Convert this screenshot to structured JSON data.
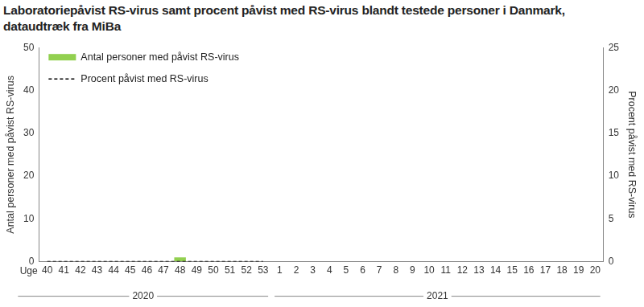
{
  "chart_data": {
    "type": "bar",
    "title": "Laboratoriepåvist RS-virus samt procent påvist med RS-virus blandt testede personer i Danmark, dataudtræk fra MiBa",
    "xlabel": "Uge",
    "ylabel": "Antal personer med påvist RS-virus",
    "y2label": "Procent påvist med RS-virus",
    "categories": [
      "40",
      "41",
      "42",
      "43",
      "44",
      "45",
      "46",
      "47",
      "48",
      "49",
      "50",
      "51",
      "52",
      "53",
      "1",
      "2",
      "3",
      "4",
      "5",
      "6",
      "7",
      "8",
      "9",
      "10",
      "11",
      "12",
      "13",
      "14",
      "15",
      "16",
      "17",
      "18",
      "19",
      "20"
    ],
    "series": [
      {
        "name": "Antal personer med påvist RS-virus",
        "type": "bar",
        "color": "#92d050",
        "values": [
          0,
          0,
          0,
          0,
          0,
          0,
          0,
          0,
          1,
          0,
          0,
          0,
          0,
          0,
          null,
          null,
          null,
          null,
          null,
          null,
          null,
          null,
          null,
          null,
          null,
          null,
          null,
          null,
          null,
          null,
          null,
          null,
          null,
          null
        ]
      },
      {
        "name": "Procent påvist med RS-virus",
        "type": "line",
        "axis": "y2",
        "color": "#000000",
        "line_style": "dashed",
        "values": [
          0,
          0,
          0,
          0,
          0,
          0,
          0,
          0,
          0,
          0,
          0,
          0,
          0,
          0,
          null,
          null,
          null,
          null,
          null,
          null,
          null,
          null,
          null,
          null,
          null,
          null,
          null,
          null,
          null,
          null,
          null,
          null,
          null,
          null
        ]
      }
    ],
    "ylim": [
      0,
      50
    ],
    "yticks": [
      0,
      10,
      20,
      30,
      40,
      50
    ],
    "y2lim": [
      0,
      25
    ],
    "y2ticks": [
      0,
      5,
      10,
      15,
      20,
      25
    ],
    "annotations": [
      {
        "text": "2020",
        "from": "40",
        "to": "53"
      },
      {
        "text": "2021",
        "from": "1",
        "to": "20"
      }
    ],
    "grid": false,
    "legend": "upper left"
  }
}
